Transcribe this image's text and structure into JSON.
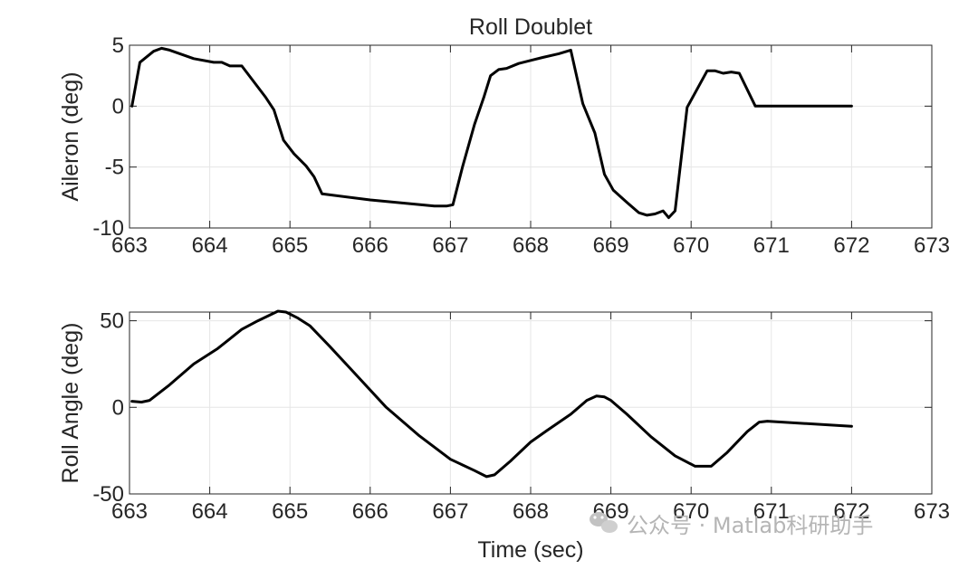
{
  "chart_data": [
    {
      "type": "line",
      "title": "Roll Doublet",
      "xlabel": "",
      "ylabel": "Aileron (deg)",
      "xlim": [
        663,
        673
      ],
      "ylim": [
        -10,
        5
      ],
      "xticks": [
        663,
        664,
        665,
        666,
        667,
        668,
        669,
        670,
        671,
        672,
        673
      ],
      "yticks": [
        -10,
        -5,
        0,
        5
      ],
      "ytick_labels": [
        "-10",
        "-5",
        "0",
        "5"
      ],
      "grid": true,
      "series": [
        {
          "color": "#000000",
          "x": [
            663.03,
            663.13,
            663.3,
            663.4,
            663.5,
            663.8,
            664.05,
            664.15,
            664.25,
            664.4,
            664.55,
            664.7,
            664.8,
            664.92,
            665.05,
            665.2,
            665.3,
            665.4,
            666.0,
            666.8,
            666.95,
            667.03,
            667.15,
            667.3,
            667.42,
            667.5,
            667.6,
            667.7,
            667.85,
            668.0,
            668.15,
            668.35,
            668.5,
            668.65,
            668.8,
            668.92,
            669.03,
            669.2,
            669.35,
            669.45,
            669.55,
            669.65,
            669.72,
            669.8,
            669.95,
            670.2,
            670.3,
            670.4,
            670.5,
            670.6,
            670.8,
            671.0,
            672.0
          ],
          "y": [
            0,
            3.6,
            4.5,
            4.75,
            4.6,
            3.9,
            3.6,
            3.6,
            3.3,
            3.3,
            2.0,
            0.7,
            -0.3,
            -2.8,
            -3.9,
            -4.9,
            -5.8,
            -7.2,
            -7.7,
            -8.2,
            -8.2,
            -8.1,
            -5.0,
            -1.5,
            0.8,
            2.5,
            3.0,
            3.1,
            3.5,
            3.75,
            4.0,
            4.3,
            4.6,
            0.2,
            -2.2,
            -5.6,
            -6.9,
            -7.9,
            -8.75,
            -8.95,
            -8.85,
            -8.6,
            -9.15,
            -8.6,
            -0.1,
            2.9,
            2.9,
            2.7,
            2.8,
            2.7,
            0,
            0,
            0
          ]
        }
      ]
    },
    {
      "type": "line",
      "title": "",
      "xlabel": "Time (sec)",
      "ylabel": "Roll Angle (deg)",
      "xlim": [
        663,
        673
      ],
      "ylim": [
        -50,
        55
      ],
      "xticks": [
        663,
        664,
        665,
        666,
        667,
        668,
        669,
        670,
        671,
        672,
        673
      ],
      "yticks": [
        -50,
        0,
        50
      ],
      "ytick_labels": [
        "-50",
        "0",
        "50"
      ],
      "grid": true,
      "series": [
        {
          "color": "#000000",
          "x": [
            663.03,
            663.15,
            663.25,
            663.5,
            663.8,
            664.1,
            664.4,
            664.6,
            664.85,
            664.95,
            665.1,
            665.25,
            665.5,
            665.8,
            666.2,
            666.6,
            667.0,
            667.3,
            667.45,
            667.55,
            667.75,
            668.0,
            668.2,
            668.5,
            668.7,
            668.82,
            668.92,
            669.0,
            669.2,
            669.5,
            669.8,
            670.05,
            670.25,
            670.45,
            670.7,
            670.85,
            670.95,
            672.0
          ],
          "y": [
            3.5,
            3.0,
            4.0,
            13,
            25,
            34,
            45,
            50,
            55.5,
            55,
            51.5,
            47,
            35,
            20,
            0,
            -16,
            -30,
            -36.5,
            -40,
            -39,
            -31,
            -20,
            -13.5,
            -4,
            4,
            6.5,
            6,
            4,
            -4,
            -17,
            -28,
            -34,
            -34,
            -26,
            -14,
            -8.5,
            -8,
            -11
          ]
        }
      ]
    },
    {
      "type": "other",
      "watermark_text": "公众号 · Matlab科研助手"
    }
  ]
}
